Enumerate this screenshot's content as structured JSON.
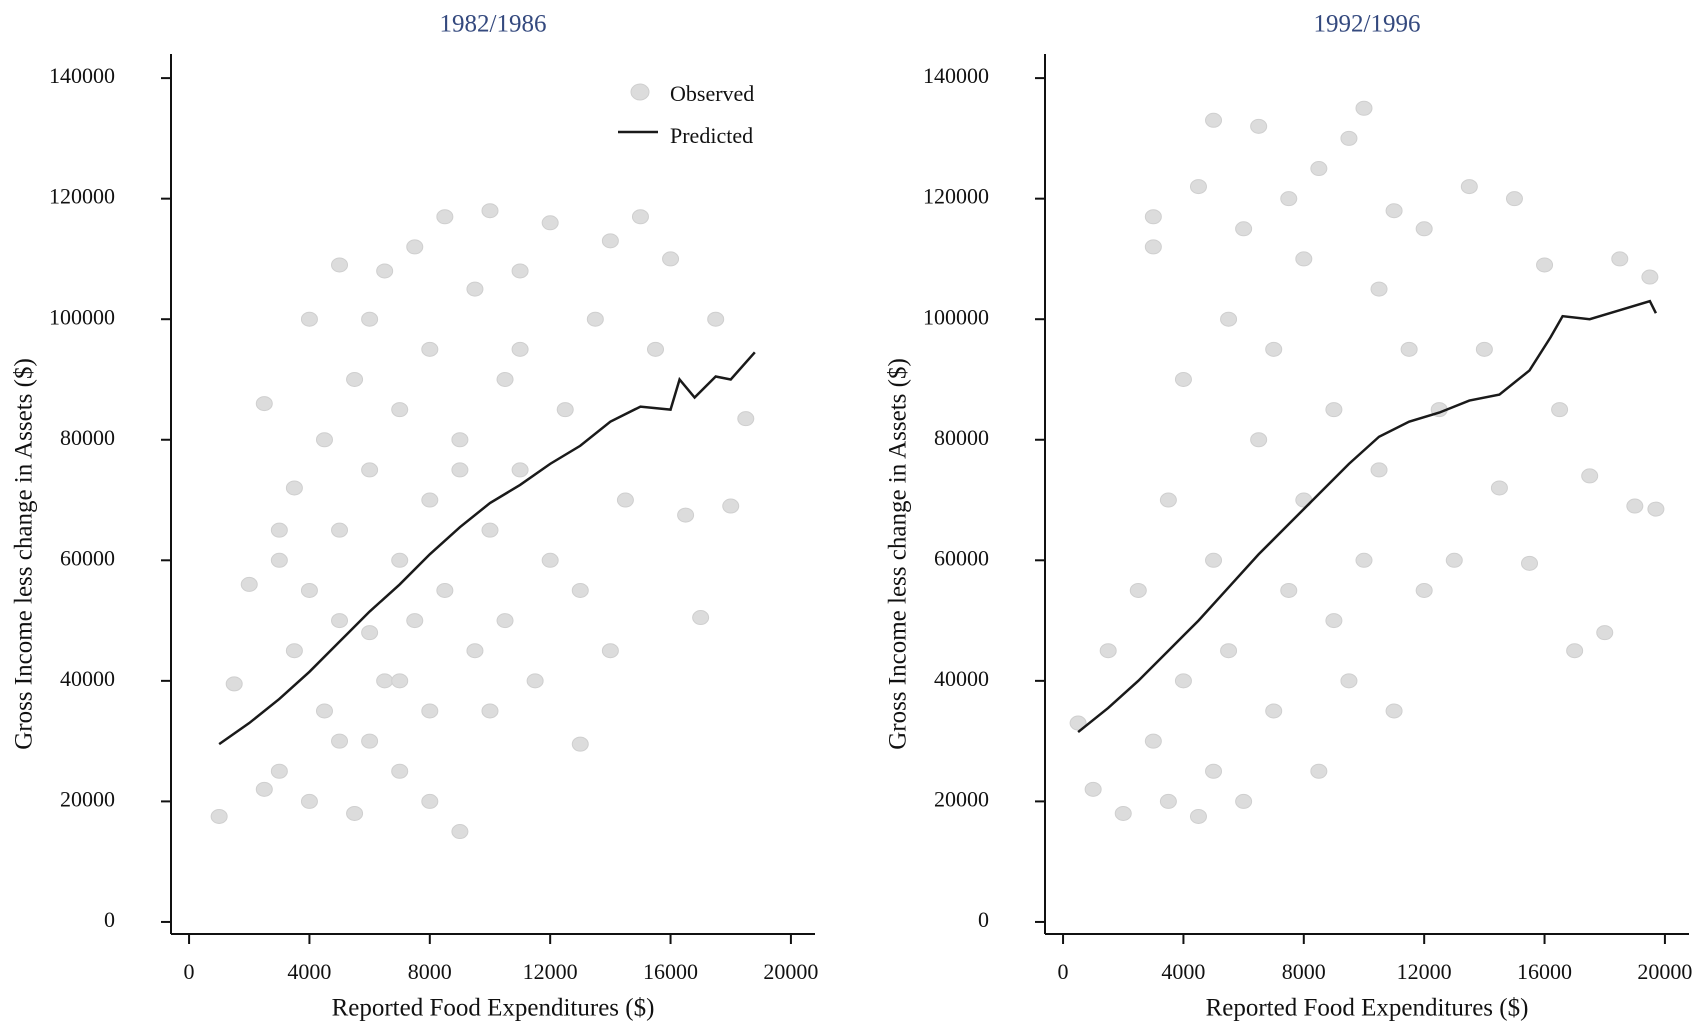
{
  "chart_data": [
    {
      "type": "scatter",
      "title": "1982/1986",
      "x_label": "Reported Food Expenditures ($)",
      "y_label": "Gross Income less change in Assets ($)",
      "xlim": [
        -600,
        20800
      ],
      "ylim": [
        -2000,
        144000
      ],
      "xticks": [
        0,
        4000,
        8000,
        12000,
        16000,
        20000
      ],
      "yticks": [
        0,
        20000,
        40000,
        60000,
        80000,
        100000,
        120000,
        140000
      ],
      "legend": "upper right",
      "series": [
        {
          "name": "Observed",
          "kind": "points",
          "color": "#dcdcdc",
          "x": [
            1000,
            1500,
            2000,
            2500,
            3000,
            3000,
            3500,
            3500,
            4000,
            4000,
            4500,
            4500,
            5000,
            5000,
            5000,
            5500,
            5500,
            6000,
            6000,
            6000,
            6500,
            6500,
            7000,
            7000,
            7000,
            7500,
            7500,
            8000,
            8000,
            8000,
            8500,
            8500,
            9000,
            9000,
            9500,
            9500,
            10000,
            10000,
            10500,
            10500,
            11000,
            11000,
            11500,
            12000,
            12000,
            12500,
            13000,
            13000,
            13500,
            14000,
            14000,
            14500,
            15000,
            15500,
            16000,
            16500,
            17000,
            17500,
            18000,
            18500,
            2500,
            4000,
            6000,
            8000,
            10000,
            3000,
            5000,
            7000,
            9000,
            11000
          ],
          "values": [
            17500,
            39500,
            56000,
            86000,
            25000,
            60000,
            45000,
            72000,
            20000,
            55000,
            35000,
            80000,
            109000,
            30000,
            65000,
            90000,
            18000,
            48000,
            75000,
            100000,
            40000,
            108000,
            60000,
            85000,
            25000,
            50000,
            112000,
            70000,
            95000,
            35000,
            55000,
            117000,
            15000,
            80000,
            45000,
            105000,
            65000,
            118000,
            90000,
            50000,
            75000,
            108000,
            40000,
            60000,
            116000,
            85000,
            29500,
            55000,
            100000,
            45000,
            113000,
            70000,
            117000,
            95000,
            110000,
            67500,
            50500,
            100000,
            69000,
            83500,
            22000,
            100000,
            30000,
            20000,
            35000,
            65000,
            50000,
            40000,
            75000,
            95000
          ]
        },
        {
          "name": "Predicted",
          "kind": "line",
          "color": "#1a1a1a",
          "x": [
            1000,
            2000,
            3000,
            4000,
            5000,
            6000,
            7000,
            8000,
            9000,
            10000,
            11000,
            12000,
            13000,
            14000,
            15000,
            16000,
            16300,
            16800,
            17500,
            18000,
            18800
          ],
          "values": [
            29500,
            33000,
            37000,
            41500,
            46500,
            51500,
            56000,
            61000,
            65500,
            69500,
            72500,
            76000,
            79000,
            83000,
            85500,
            85000,
            90000,
            87000,
            90500,
            90000,
            94500
          ]
        }
      ]
    },
    {
      "type": "scatter",
      "title": "1992/1996",
      "x_label": "Reported Food Expenditures ($)",
      "y_label": "Gross Income less change in Assets ($)",
      "xlim": [
        -600,
        20800
      ],
      "ylim": [
        -2000,
        144000
      ],
      "xticks": [
        0,
        4000,
        8000,
        12000,
        16000,
        20000
      ],
      "yticks": [
        0,
        20000,
        40000,
        60000,
        80000,
        100000,
        120000,
        140000
      ],
      "series": [
        {
          "name": "Observed",
          "kind": "points",
          "color": "#dcdcdc",
          "x": [
            500,
            1000,
            1500,
            2000,
            2500,
            3000,
            3000,
            3500,
            3500,
            4000,
            4000,
            4500,
            4500,
            5000,
            5000,
            5000,
            5500,
            5500,
            6000,
            6000,
            6500,
            6500,
            7000,
            7000,
            7500,
            7500,
            8000,
            8000,
            8500,
            8500,
            9000,
            9000,
            9500,
            9500,
            10000,
            10000,
            10500,
            10500,
            11000,
            11000,
            11500,
            12000,
            12000,
            12500,
            13000,
            13500,
            14000,
            14500,
            15000,
            15500,
            16000,
            16500,
            17000,
            17500,
            18000,
            18500,
            19000,
            19500,
            19700,
            3000
          ],
          "values": [
            33000,
            22000,
            45000,
            18000,
            55000,
            112000,
            30000,
            70000,
            20000,
            90000,
            40000,
            122000,
            17500,
            60000,
            133000,
            25000,
            100000,
            45000,
            115000,
            20000,
            80000,
            132000,
            35000,
            95000,
            55000,
            120000,
            70000,
            110000,
            25000,
            125000,
            85000,
            50000,
            130000,
            40000,
            135000,
            60000,
            105000,
            75000,
            118000,
            35000,
            95000,
            55000,
            115000,
            85000,
            60000,
            122000,
            95000,
            72000,
            120000,
            59500,
            109000,
            85000,
            45000,
            74000,
            48000,
            110000,
            69000,
            107000,
            68500,
            117000
          ]
        },
        {
          "name": "Predicted",
          "kind": "line",
          "color": "#1a1a1a",
          "x": [
            500,
            1500,
            2500,
            3500,
            4500,
            5500,
            6500,
            7500,
            8500,
            9500,
            10500,
            11500,
            12500,
            13500,
            14500,
            15500,
            16200,
            16600,
            17500,
            18500,
            19500,
            19700
          ],
          "values": [
            31500,
            35500,
            40000,
            45000,
            50000,
            55500,
            61000,
            66000,
            71000,
            76000,
            80500,
            83000,
            84500,
            86500,
            87500,
            91500,
            97000,
            100500,
            100000,
            101500,
            103000,
            101000
          ]
        }
      ]
    }
  ]
}
